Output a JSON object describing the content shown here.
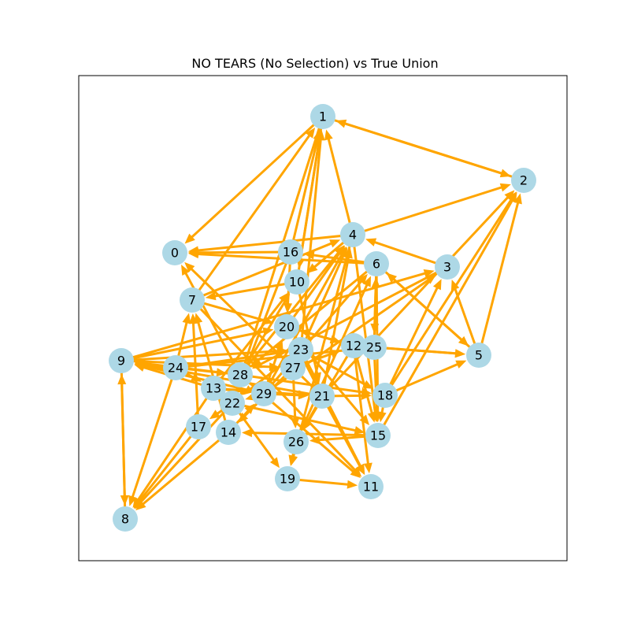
{
  "title": "NO TEARS (No Selection) vs True Union",
  "colors": {
    "edge": "#FFA500",
    "node": "#ADD8E6",
    "frame": "#000000",
    "label": "#000000"
  },
  "nodes": [
    {
      "id": "0",
      "label": "0"
    },
    {
      "id": "1",
      "label": "1"
    },
    {
      "id": "2",
      "label": "2"
    },
    {
      "id": "3",
      "label": "3"
    },
    {
      "id": "4",
      "label": "4"
    },
    {
      "id": "5",
      "label": "5"
    },
    {
      "id": "6",
      "label": "6"
    },
    {
      "id": "7",
      "label": "7"
    },
    {
      "id": "8",
      "label": "8"
    },
    {
      "id": "9",
      "label": "9"
    },
    {
      "id": "10",
      "label": "10"
    },
    {
      "id": "11",
      "label": "11"
    },
    {
      "id": "12",
      "label": "12"
    },
    {
      "id": "13",
      "label": "13"
    },
    {
      "id": "14",
      "label": "14"
    },
    {
      "id": "15",
      "label": "15"
    },
    {
      "id": "16",
      "label": "16"
    },
    {
      "id": "17",
      "label": "17"
    },
    {
      "id": "18",
      "label": "18"
    },
    {
      "id": "19",
      "label": "19"
    },
    {
      "id": "20",
      "label": "20"
    },
    {
      "id": "21",
      "label": "21"
    },
    {
      "id": "22",
      "label": "22"
    },
    {
      "id": "23",
      "label": "23"
    },
    {
      "id": "24",
      "label": "24"
    },
    {
      "id": "25",
      "label": "25"
    },
    {
      "id": "26",
      "label": "26"
    },
    {
      "id": "27",
      "label": "27"
    },
    {
      "id": "28",
      "label": "28"
    },
    {
      "id": "29",
      "label": "29"
    }
  ],
  "edges": [
    [
      "2",
      "1"
    ],
    [
      "1",
      "2"
    ],
    [
      "1",
      "0"
    ],
    [
      "7",
      "1"
    ],
    [
      "16",
      "1"
    ],
    [
      "10",
      "1"
    ],
    [
      "23",
      "1"
    ],
    [
      "4",
      "1"
    ],
    [
      "4",
      "2"
    ],
    [
      "21",
      "2"
    ],
    [
      "18",
      "2"
    ],
    [
      "15",
      "2"
    ],
    [
      "5",
      "2"
    ],
    [
      "4",
      "0"
    ],
    [
      "16",
      "0"
    ],
    [
      "6",
      "0"
    ],
    [
      "21",
      "0"
    ],
    [
      "28",
      "0"
    ],
    [
      "3",
      "4"
    ],
    [
      "7",
      "4"
    ],
    [
      "27",
      "4"
    ],
    [
      "29",
      "4"
    ],
    [
      "21",
      "4"
    ],
    [
      "28",
      "4"
    ],
    [
      "6",
      "16"
    ],
    [
      "1",
      "10"
    ],
    [
      "4",
      "10"
    ],
    [
      "28",
      "10"
    ],
    [
      "13",
      "10"
    ],
    [
      "25",
      "6"
    ],
    [
      "26",
      "6"
    ],
    [
      "29",
      "6"
    ],
    [
      "5",
      "6"
    ],
    [
      "6",
      "5"
    ],
    [
      "29",
      "3"
    ],
    [
      "18",
      "3"
    ],
    [
      "9",
      "3"
    ],
    [
      "5",
      "3"
    ],
    [
      "12",
      "5"
    ],
    [
      "25",
      "5"
    ],
    [
      "18",
      "5"
    ],
    [
      "4",
      "15"
    ],
    [
      "24",
      "7"
    ],
    [
      "17",
      "7"
    ],
    [
      "14",
      "7"
    ],
    [
      "10",
      "7"
    ],
    [
      "20",
      "4"
    ],
    [
      "29",
      "20"
    ],
    [
      "21",
      "20"
    ],
    [
      "12",
      "20"
    ],
    [
      "7",
      "20"
    ],
    [
      "9",
      "23"
    ],
    [
      "24",
      "23"
    ],
    [
      "9",
      "27"
    ],
    [
      "24",
      "28"
    ],
    [
      "13",
      "29"
    ],
    [
      "9",
      "20"
    ],
    [
      "28",
      "11"
    ],
    [
      "7",
      "11"
    ],
    [
      "21",
      "11"
    ],
    [
      "23",
      "11"
    ],
    [
      "12",
      "11"
    ],
    [
      "19",
      "11"
    ],
    [
      "25",
      "15"
    ],
    [
      "20",
      "15"
    ],
    [
      "6",
      "15"
    ],
    [
      "22",
      "15"
    ],
    [
      "18",
      "15"
    ],
    [
      "12",
      "15"
    ],
    [
      "4",
      "19"
    ],
    [
      "22",
      "19"
    ],
    [
      "15",
      "26"
    ],
    [
      "21",
      "26"
    ],
    [
      "27",
      "26"
    ],
    [
      "26",
      "19"
    ],
    [
      "12",
      "26"
    ],
    [
      "9",
      "8"
    ],
    [
      "8",
      "9"
    ],
    [
      "17",
      "8"
    ],
    [
      "13",
      "8"
    ],
    [
      "14",
      "8"
    ],
    [
      "24",
      "8"
    ],
    [
      "22",
      "8"
    ],
    [
      "23",
      "18"
    ],
    [
      "28",
      "18"
    ],
    [
      "21",
      "18"
    ],
    [
      "29",
      "21"
    ],
    [
      "13",
      "21"
    ],
    [
      "14",
      "29"
    ],
    [
      "27",
      "14"
    ],
    [
      "15",
      "14"
    ],
    [
      "24",
      "13"
    ],
    [
      "29",
      "22"
    ],
    [
      "22",
      "17"
    ],
    [
      "23",
      "22"
    ],
    [
      "20",
      "12"
    ],
    [
      "25",
      "12"
    ],
    [
      "27",
      "12"
    ],
    [
      "24",
      "25"
    ],
    [
      "6",
      "25"
    ],
    [
      "24",
      "9"
    ],
    [
      "13",
      "9"
    ],
    [
      "21",
      "9"
    ],
    [
      "29",
      "9"
    ],
    [
      "28",
      "9"
    ],
    [
      "16",
      "20"
    ],
    [
      "10",
      "21"
    ],
    [
      "6",
      "28"
    ],
    [
      "3",
      "28"
    ],
    [
      "16",
      "22"
    ],
    [
      "1",
      "22"
    ]
  ]
}
